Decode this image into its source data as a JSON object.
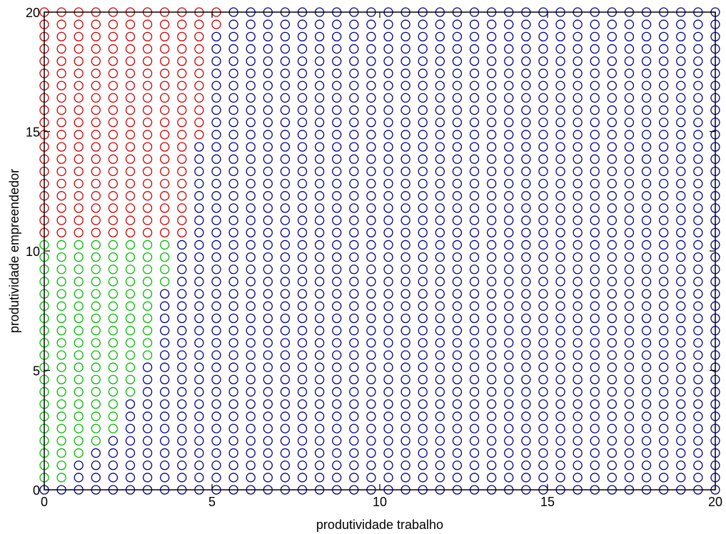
{
  "chart_data": {
    "type": "scatter",
    "title": "",
    "xlabel": "produtividade trabalho",
    "ylabel": "produtividade empreendedor",
    "xlim": [
      0,
      20
    ],
    "ylim": [
      0,
      20
    ],
    "xticks": [
      0,
      5,
      10,
      15,
      20
    ],
    "yticks": [
      0,
      5,
      10,
      15,
      20
    ],
    "grid": false,
    "marker": "open-circle",
    "grid_points": {
      "x_start": 0,
      "x_step": 0.5128,
      "x_count": 40,
      "y_start": 0,
      "y_step": 0.5128,
      "y_count": 40
    },
    "series": [
      {
        "color": "#cc0000",
        "region": "x index 0-10 for y >= 10.77; boundary steps down from x<=5.13 (y>=19.49) to x<=4.10 (y<=11.79)"
      },
      {
        "color": "#00bb00",
        "region": "y <= 10.26; x upper bound decreasing from 3.59 (y near 10) to 0.51 (y = 0.51), x = 0 only at y = 0 excluded"
      },
      {
        "color": "#00008b",
        "region": "all remaining grid points"
      }
    ],
    "boundaries": {
      "red_max_x_index_by_y_index": {
        "39": 10,
        "38": 10,
        "37": 9,
        "36": 9,
        "35": 9,
        "34": 9,
        "33": 9,
        "32": 9,
        "31": 9,
        "30": 9,
        "29": 9,
        "28": 8,
        "27": 8,
        "26": 8,
        "25": 8,
        "24": 8,
        "23": 8,
        "22": 8,
        "21": 8
      },
      "green_max_x_index_by_y_index": {
        "20": 7,
        "19": 7,
        "18": 7,
        "17": 7,
        "16": 6,
        "15": 6,
        "14": 6,
        "13": 6,
        "12": 6,
        "11": 6,
        "10": 5,
        "9": 5,
        "8": 5,
        "7": 4,
        "6": 4,
        "5": 4,
        "4": 3,
        "3": 2,
        "2": 1,
        "1": 1,
        "0": -1
      }
    },
    "colors": {
      "red": "#cc0000",
      "green": "#00bb00",
      "blue": "#00008b",
      "axes": "#000000"
    }
  }
}
